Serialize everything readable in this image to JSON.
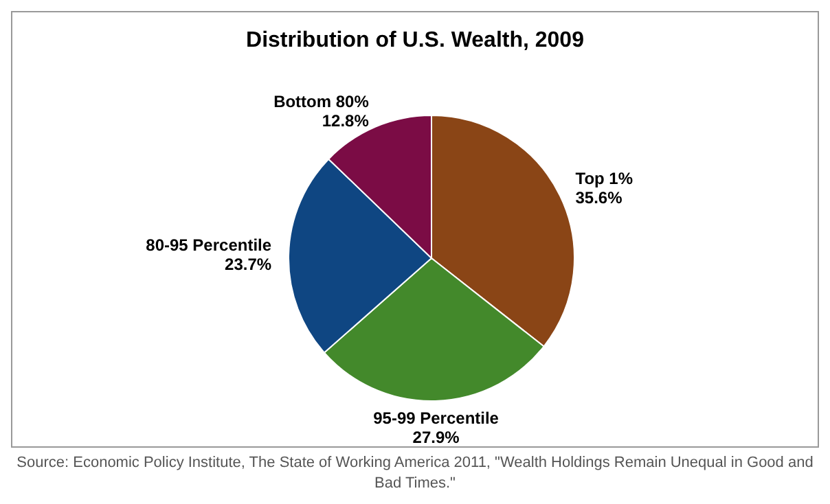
{
  "chart_data": {
    "type": "pie",
    "title": "Distribution of U.S. Wealth, 2009",
    "categories": [
      "Top 1%",
      "95-99 Percentile",
      "80-95 Percentile",
      "Bottom 80%"
    ],
    "values": [
      35.6,
      27.9,
      23.7,
      12.8
    ],
    "value_labels": [
      "35.6%",
      "27.9%",
      "23.7%",
      "12.8%"
    ],
    "colors": [
      "#8a4516",
      "#43892b",
      "#0f4682",
      "#7b0c45"
    ],
    "annotations": [
      "Source: Economic Policy Institute, The State of Working America 2011, \"Wealth Holdings Remain Unequal in Good and Bad Times.\""
    ]
  }
}
